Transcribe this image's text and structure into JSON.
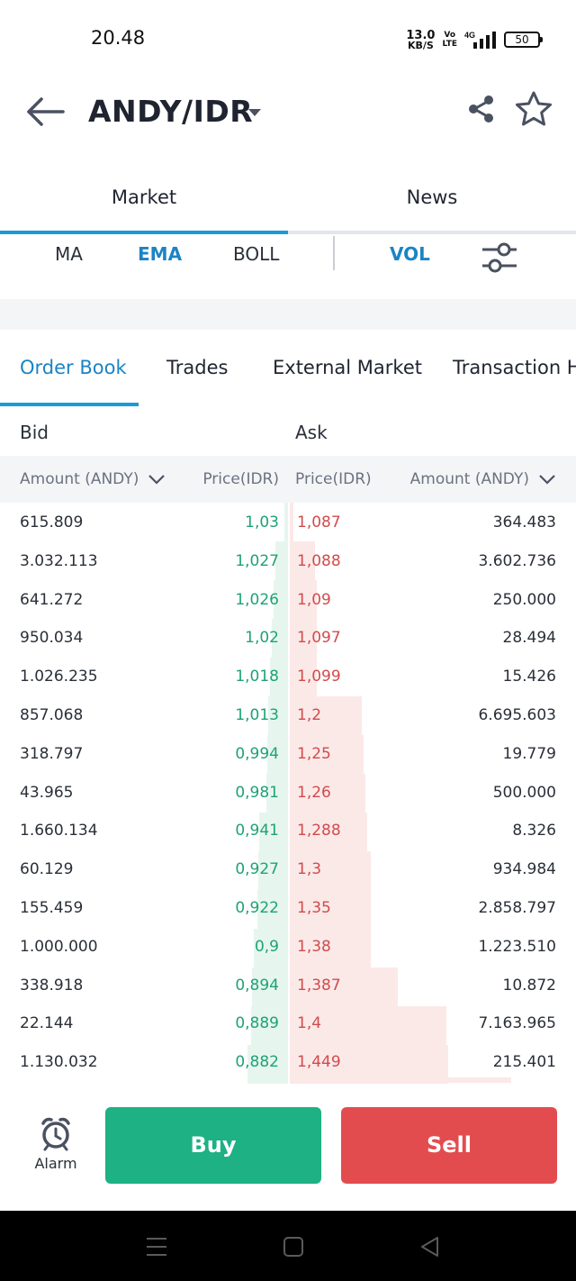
{
  "status_bar": {
    "time": "20.48",
    "net_speed_value": "13.0",
    "net_speed_unit": "KB/S",
    "volte_top": "Vo",
    "volte_bottom": "LTE",
    "signal": "4G",
    "battery": "50"
  },
  "header": {
    "title": "ANDY/IDR"
  },
  "top_tabs": [
    {
      "label": "Market",
      "active": true
    },
    {
      "label": "News",
      "active": false
    }
  ],
  "indicators": [
    {
      "label": "MA"
    },
    {
      "label": "EMA"
    },
    {
      "label": "BOLL"
    },
    {
      "label": "VOL"
    }
  ],
  "order_tabs": [
    {
      "label": "Order Book"
    },
    {
      "label": "Trades"
    },
    {
      "label": "External Market"
    },
    {
      "label": "Transaction H"
    }
  ],
  "bidask": {
    "bid": "Bid",
    "ask": "Ask"
  },
  "columns": {
    "amount_left": "Amount (ANDY)",
    "price_left": "Price(IDR)",
    "price_right": "Price(IDR)",
    "amount_right": "Amount (ANDY)"
  },
  "rows": [
    {
      "bid_amount": "615.809",
      "bid_price": "1,03",
      "ask_price": "1,087",
      "ask_amount": "364.483"
    },
    {
      "bid_amount": "3.032.113",
      "bid_price": "1,027",
      "ask_price": "1,088",
      "ask_amount": "3.602.736"
    },
    {
      "bid_amount": "641.272",
      "bid_price": "1,026",
      "ask_price": "1,09",
      "ask_amount": "250.000"
    },
    {
      "bid_amount": "950.034",
      "bid_price": "1,02",
      "ask_price": "1,097",
      "ask_amount": "28.494"
    },
    {
      "bid_amount": "1.026.235",
      "bid_price": "1,018",
      "ask_price": "1,099",
      "ask_amount": "15.426"
    },
    {
      "bid_amount": "857.068",
      "bid_price": "1,013",
      "ask_price": "1,2",
      "ask_amount": "6.695.603"
    },
    {
      "bid_amount": "318.797",
      "bid_price": "0,994",
      "ask_price": "1,25",
      "ask_amount": "19.779"
    },
    {
      "bid_amount": "43.965",
      "bid_price": "0,981",
      "ask_price": "1,26",
      "ask_amount": "500.000"
    },
    {
      "bid_amount": "1.660.134",
      "bid_price": "0,941",
      "ask_price": "1,288",
      "ask_amount": "8.326"
    },
    {
      "bid_amount": "60.129",
      "bid_price": "0,927",
      "ask_price": "1,3",
      "ask_amount": "934.984"
    },
    {
      "bid_amount": "155.459",
      "bid_price": "0,922",
      "ask_price": "1,35",
      "ask_amount": "2.858.797"
    },
    {
      "bid_amount": "1.000.000",
      "bid_price": "0,9",
      "ask_price": "1,38",
      "ask_amount": "1.223.510"
    },
    {
      "bid_amount": "338.918",
      "bid_price": "0,894",
      "ask_price": "1,387",
      "ask_amount": "10.872"
    },
    {
      "bid_amount": "22.144",
      "bid_price": "0,889",
      "ask_price": "1,4",
      "ask_amount": "7.163.965"
    },
    {
      "bid_amount": "1.130.032",
      "bid_price": "0,882",
      "ask_price": "1,449",
      "ask_amount": "215.401"
    }
  ],
  "actions": {
    "alarm": "Alarm",
    "buy": "Buy",
    "sell": "Sell"
  },
  "colors": {
    "accent": "#1b9ad6",
    "buy": "#1db183",
    "sell": "#e34c4f",
    "bid_text": "#1fa276",
    "ask_text": "#d24b4b"
  }
}
